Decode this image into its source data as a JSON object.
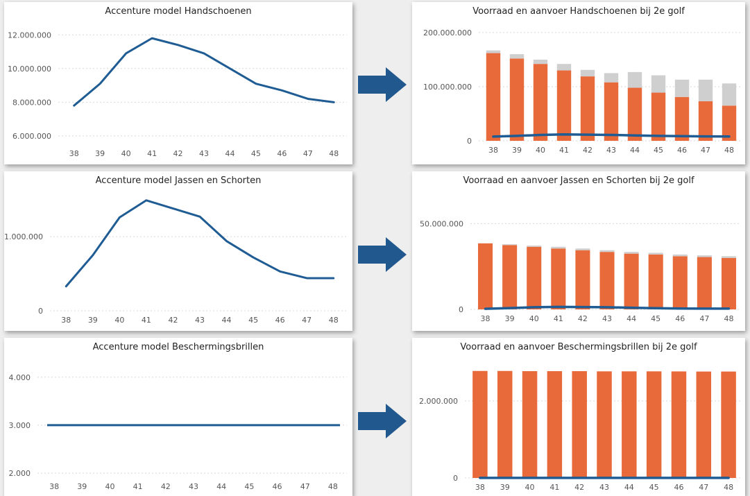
{
  "colors": {
    "line": "#1f5c93",
    "stock_bar": "#e8693a",
    "supply_bar": "#cfcfcf",
    "arrow": "#21588e",
    "grid": "#d8d8d8"
  },
  "icons": [
    "arrow-right-icon"
  ],
  "chart_data": [
    {
      "id": "hands-model",
      "type": "line",
      "title": "Accenture model Handschoenen",
      "categories": [
        "38",
        "39",
        "40",
        "41",
        "42",
        "43",
        "44",
        "45",
        "46",
        "47",
        "48"
      ],
      "series": [
        {
          "values": [
            7800000,
            9100000,
            10900000,
            11800000,
            11400000,
            10900000,
            10000000,
            9100000,
            8700000,
            8200000,
            8000000
          ]
        }
      ],
      "ylim": [
        5500000,
        12300000
      ],
      "yticks": [
        6000000,
        8000000,
        10000000,
        12000000
      ],
      "ytick_labels": [
        "6.000.000",
        "8.000.000",
        "10.000.000",
        "12.000.000"
      ],
      "grid": true
    },
    {
      "id": "hands-stock",
      "type": "bar",
      "title": "Voorraad en aanvoer Handschoenen bij 2e golf",
      "categories": [
        "38",
        "39",
        "40",
        "41",
        "42",
        "43",
        "44",
        "45",
        "46",
        "47",
        "48"
      ],
      "stacked": true,
      "series": [
        {
          "values": [
            162000000,
            152000000,
            142000000,
            130000000,
            119000000,
            108000000,
            98000000,
            89000000,
            81000000,
            73000000,
            65000000
          ]
        },
        {
          "values": [
            5000000,
            8000000,
            8000000,
            12000000,
            12000000,
            17000000,
            29000000,
            32000000,
            32000000,
            40000000,
            41000000
          ]
        }
      ],
      "line": [
        7800000,
        9100000,
        10900000,
        11800000,
        11400000,
        10900000,
        10000000,
        9100000,
        8700000,
        8200000,
        8000000
      ],
      "ylim": [
        0,
        205000000
      ],
      "yticks": [
        0,
        100000000,
        200000000
      ],
      "ytick_labels": [
        "0",
        "100.000.000",
        "200.000.000"
      ],
      "grid": true
    },
    {
      "id": "jackets-model",
      "type": "line",
      "title": "Accenture model Jassen en Schorten",
      "categories": [
        "38",
        "39",
        "40",
        "41",
        "42",
        "43",
        "44",
        "45",
        "46",
        "47",
        "48"
      ],
      "series": [
        {
          "values": [
            330000,
            750000,
            1260000,
            1490000,
            1380000,
            1270000,
            940000,
            720000,
            530000,
            440000,
            440000
          ]
        }
      ],
      "ylim": [
        0,
        1600000
      ],
      "yticks": [
        0,
        1000000
      ],
      "ytick_labels": [
        "0",
        "1.000.000"
      ],
      "grid": true
    },
    {
      "id": "jackets-stock",
      "type": "bar",
      "title": "Voorraad en aanvoer Jassen en Schorten bij 2e golf",
      "categories": [
        "38",
        "39",
        "40",
        "41",
        "42",
        "43",
        "44",
        "45",
        "46",
        "47",
        "48"
      ],
      "stacked": true,
      "series": [
        {
          "values": [
            38500000,
            37500000,
            36500000,
            35500000,
            34500000,
            33500000,
            32500000,
            32000000,
            31000000,
            30500000,
            30000000
          ]
        },
        {
          "values": [
            0,
            500000,
            700000,
            1000000,
            1000000,
            1000000,
            1000000,
            1000000,
            1000000,
            1000000,
            1000000
          ]
        }
      ],
      "line": [
        330000,
        750000,
        1260000,
        1490000,
        1380000,
        1270000,
        940000,
        720000,
        530000,
        440000,
        440000
      ],
      "ylim": [
        0,
        55000000
      ],
      "yticks": [
        0,
        50000000
      ],
      "ytick_labels": [
        "0",
        "50.000.000"
      ],
      "grid": true
    },
    {
      "id": "glasses-model",
      "type": "line",
      "title": "Accenture model Beschermingsbrillen",
      "categories": [
        "38",
        "39",
        "40",
        "41",
        "42",
        "43",
        "44",
        "45",
        "46",
        "47",
        "48"
      ],
      "series": [
        {
          "values": [
            3000,
            3000,
            3000,
            3000,
            3000,
            3000,
            3000,
            3000,
            3000,
            3000,
            3000
          ]
        }
      ],
      "ylim": [
        1900,
        4300
      ],
      "yticks": [
        2000,
        3000,
        4000
      ],
      "ytick_labels": [
        "2.000",
        "3.000",
        "4.000"
      ],
      "grid": true
    },
    {
      "id": "glasses-stock",
      "type": "bar",
      "title": "Voorraad en aanvoer Beschermingsbrillen bij 2e golf",
      "categories": [
        "38",
        "39",
        "40",
        "41",
        "42",
        "43",
        "44",
        "45",
        "46",
        "47",
        "48"
      ],
      "stacked": true,
      "series": [
        {
          "values": [
            2780000,
            2780000,
            2775000,
            2775000,
            2775000,
            2770000,
            2770000,
            2770000,
            2768000,
            2765000,
            2765000
          ]
        },
        {
          "values": [
            0,
            0,
            0,
            0,
            0,
            0,
            0,
            0,
            0,
            0,
            0
          ]
        }
      ],
      "line": [
        3000,
        3000,
        3000,
        3000,
        3000,
        3000,
        3000,
        3000,
        3000,
        3000,
        3000
      ],
      "ylim": [
        0,
        3100000
      ],
      "yticks": [
        0,
        2000000
      ],
      "ytick_labels": [
        "0",
        "2.000.000"
      ],
      "grid": true
    }
  ]
}
